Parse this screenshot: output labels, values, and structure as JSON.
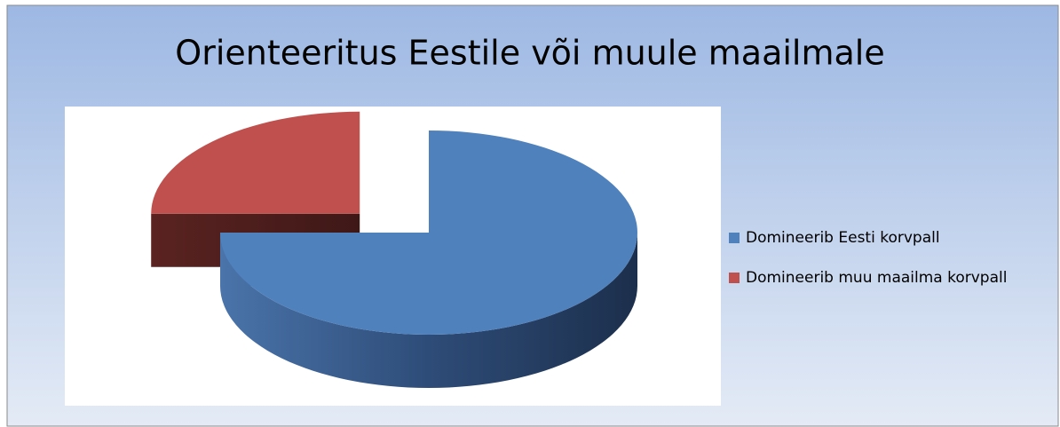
{
  "chart_data": {
    "type": "pie",
    "title": "Orienteeritus Eestile või muule maailmale",
    "categories": [
      "Domineerib Eesti korvpall",
      "Domineerib muu maailma korvpall"
    ],
    "values": [
      75,
      25
    ],
    "colors": [
      "#4f81bd",
      "#c0504d"
    ],
    "legend": "right"
  }
}
